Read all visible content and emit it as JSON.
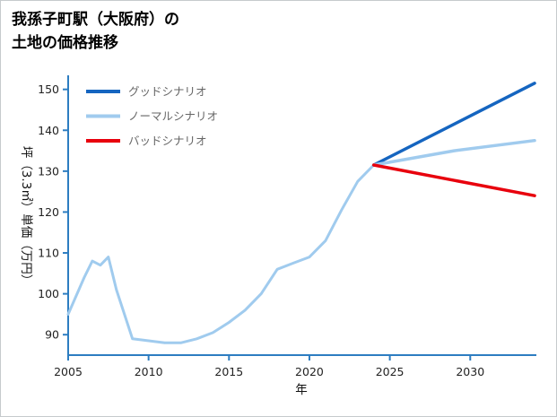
{
  "header": {
    "title_line1": "我孫子町駅（大阪府）の",
    "title_line2": "土地の価格推移"
  },
  "chart_data": {
    "type": "line",
    "title": "我孫子町駅（大阪府）の土地の価格推移",
    "xlabel": "年",
    "ylabel": "坪（3.3㎡）単価（万円）",
    "xlim": [
      2005,
      2034
    ],
    "ylim": [
      85,
      153
    ],
    "xticks": [
      2005,
      2010,
      2015,
      2020,
      2025,
      2030
    ],
    "yticks": [
      90,
      100,
      110,
      120,
      130,
      140,
      150
    ],
    "grid": false,
    "legend_position": "top-left",
    "axis_color": "#2d7dc1",
    "series": [
      {
        "id": "history",
        "label": "",
        "in_legend": false,
        "color": "#a0cbee",
        "width": 3,
        "points": [
          [
            2005,
            95
          ],
          [
            2006,
            104
          ],
          [
            2006.5,
            108
          ],
          [
            2007,
            107
          ],
          [
            2007.5,
            109
          ],
          [
            2008,
            101
          ],
          [
            2009,
            89
          ],
          [
            2010,
            88.5
          ],
          [
            2011,
            88
          ],
          [
            2012,
            88
          ],
          [
            2013,
            89
          ],
          [
            2014,
            90.5
          ],
          [
            2015,
            93
          ],
          [
            2016,
            96
          ],
          [
            2017,
            100
          ],
          [
            2018,
            106
          ],
          [
            2019,
            107.5
          ],
          [
            2020,
            109
          ],
          [
            2021,
            113
          ],
          [
            2022,
            120.5
          ],
          [
            2023,
            127.5
          ],
          [
            2024,
            131.5
          ]
        ]
      },
      {
        "id": "good",
        "label": "グッドシナリオ",
        "in_legend": true,
        "color": "#1565c0",
        "width": 3.5,
        "points": [
          [
            2024,
            131.5
          ],
          [
            2034,
            151.5
          ]
        ]
      },
      {
        "id": "normal",
        "label": "ノーマルシナリオ",
        "in_legend": true,
        "color": "#a0cbee",
        "width": 3.5,
        "points": [
          [
            2024,
            131.5
          ],
          [
            2029,
            135
          ],
          [
            2034,
            137.5
          ]
        ]
      },
      {
        "id": "bad",
        "label": "バッドシナリオ",
        "in_legend": true,
        "color": "#e8000d",
        "width": 3.5,
        "points": [
          [
            2024,
            131.5
          ],
          [
            2034,
            124
          ]
        ]
      }
    ]
  }
}
